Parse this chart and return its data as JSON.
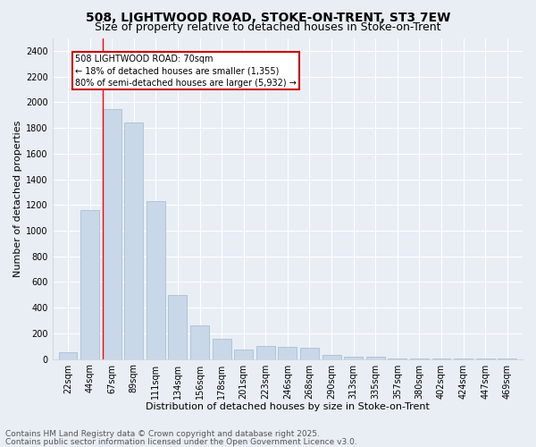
{
  "title1": "508, LIGHTWOOD ROAD, STOKE-ON-TRENT, ST3 7EW",
  "title2": "Size of property relative to detached houses in Stoke-on-Trent",
  "xlabel": "Distribution of detached houses by size in Stoke-on-Trent",
  "ylabel": "Number of detached properties",
  "categories": [
    "22sqm",
    "44sqm",
    "67sqm",
    "89sqm",
    "111sqm",
    "134sqm",
    "156sqm",
    "178sqm",
    "201sqm",
    "223sqm",
    "246sqm",
    "268sqm",
    "290sqm",
    "313sqm",
    "335sqm",
    "357sqm",
    "380sqm",
    "402sqm",
    "424sqm",
    "447sqm",
    "469sqm"
  ],
  "values": [
    55,
    1160,
    1950,
    1840,
    1230,
    500,
    265,
    160,
    75,
    100,
    95,
    90,
    30,
    15,
    15,
    5,
    5,
    3,
    3,
    3,
    3
  ],
  "bar_color": "#c8d8e8",
  "bar_edgecolor": "#a0b8d0",
  "redline_index": 2,
  "annotation_text": "508 LIGHTWOOD ROAD: 70sqm\n← 18% of detached houses are smaller (1,355)\n80% of semi-detached houses are larger (5,932) →",
  "annotation_box_color": "#ffffff",
  "annotation_box_edgecolor": "#cc0000",
  "footer1": "Contains HM Land Registry data © Crown copyright and database right 2025.",
  "footer2": "Contains public sector information licensed under the Open Government Licence v3.0.",
  "ylim": [
    0,
    2500
  ],
  "yticks": [
    0,
    200,
    400,
    600,
    800,
    1000,
    1200,
    1400,
    1600,
    1800,
    2000,
    2200,
    2400
  ],
  "bg_color": "#e8eef4",
  "plot_bg_color": "#e8eef4",
  "grid_color": "#ffffff",
  "title_fontsize": 10,
  "subtitle_fontsize": 9,
  "axis_label_fontsize": 8,
  "tick_fontsize": 7,
  "annotation_fontsize": 7,
  "footer_fontsize": 6.5
}
